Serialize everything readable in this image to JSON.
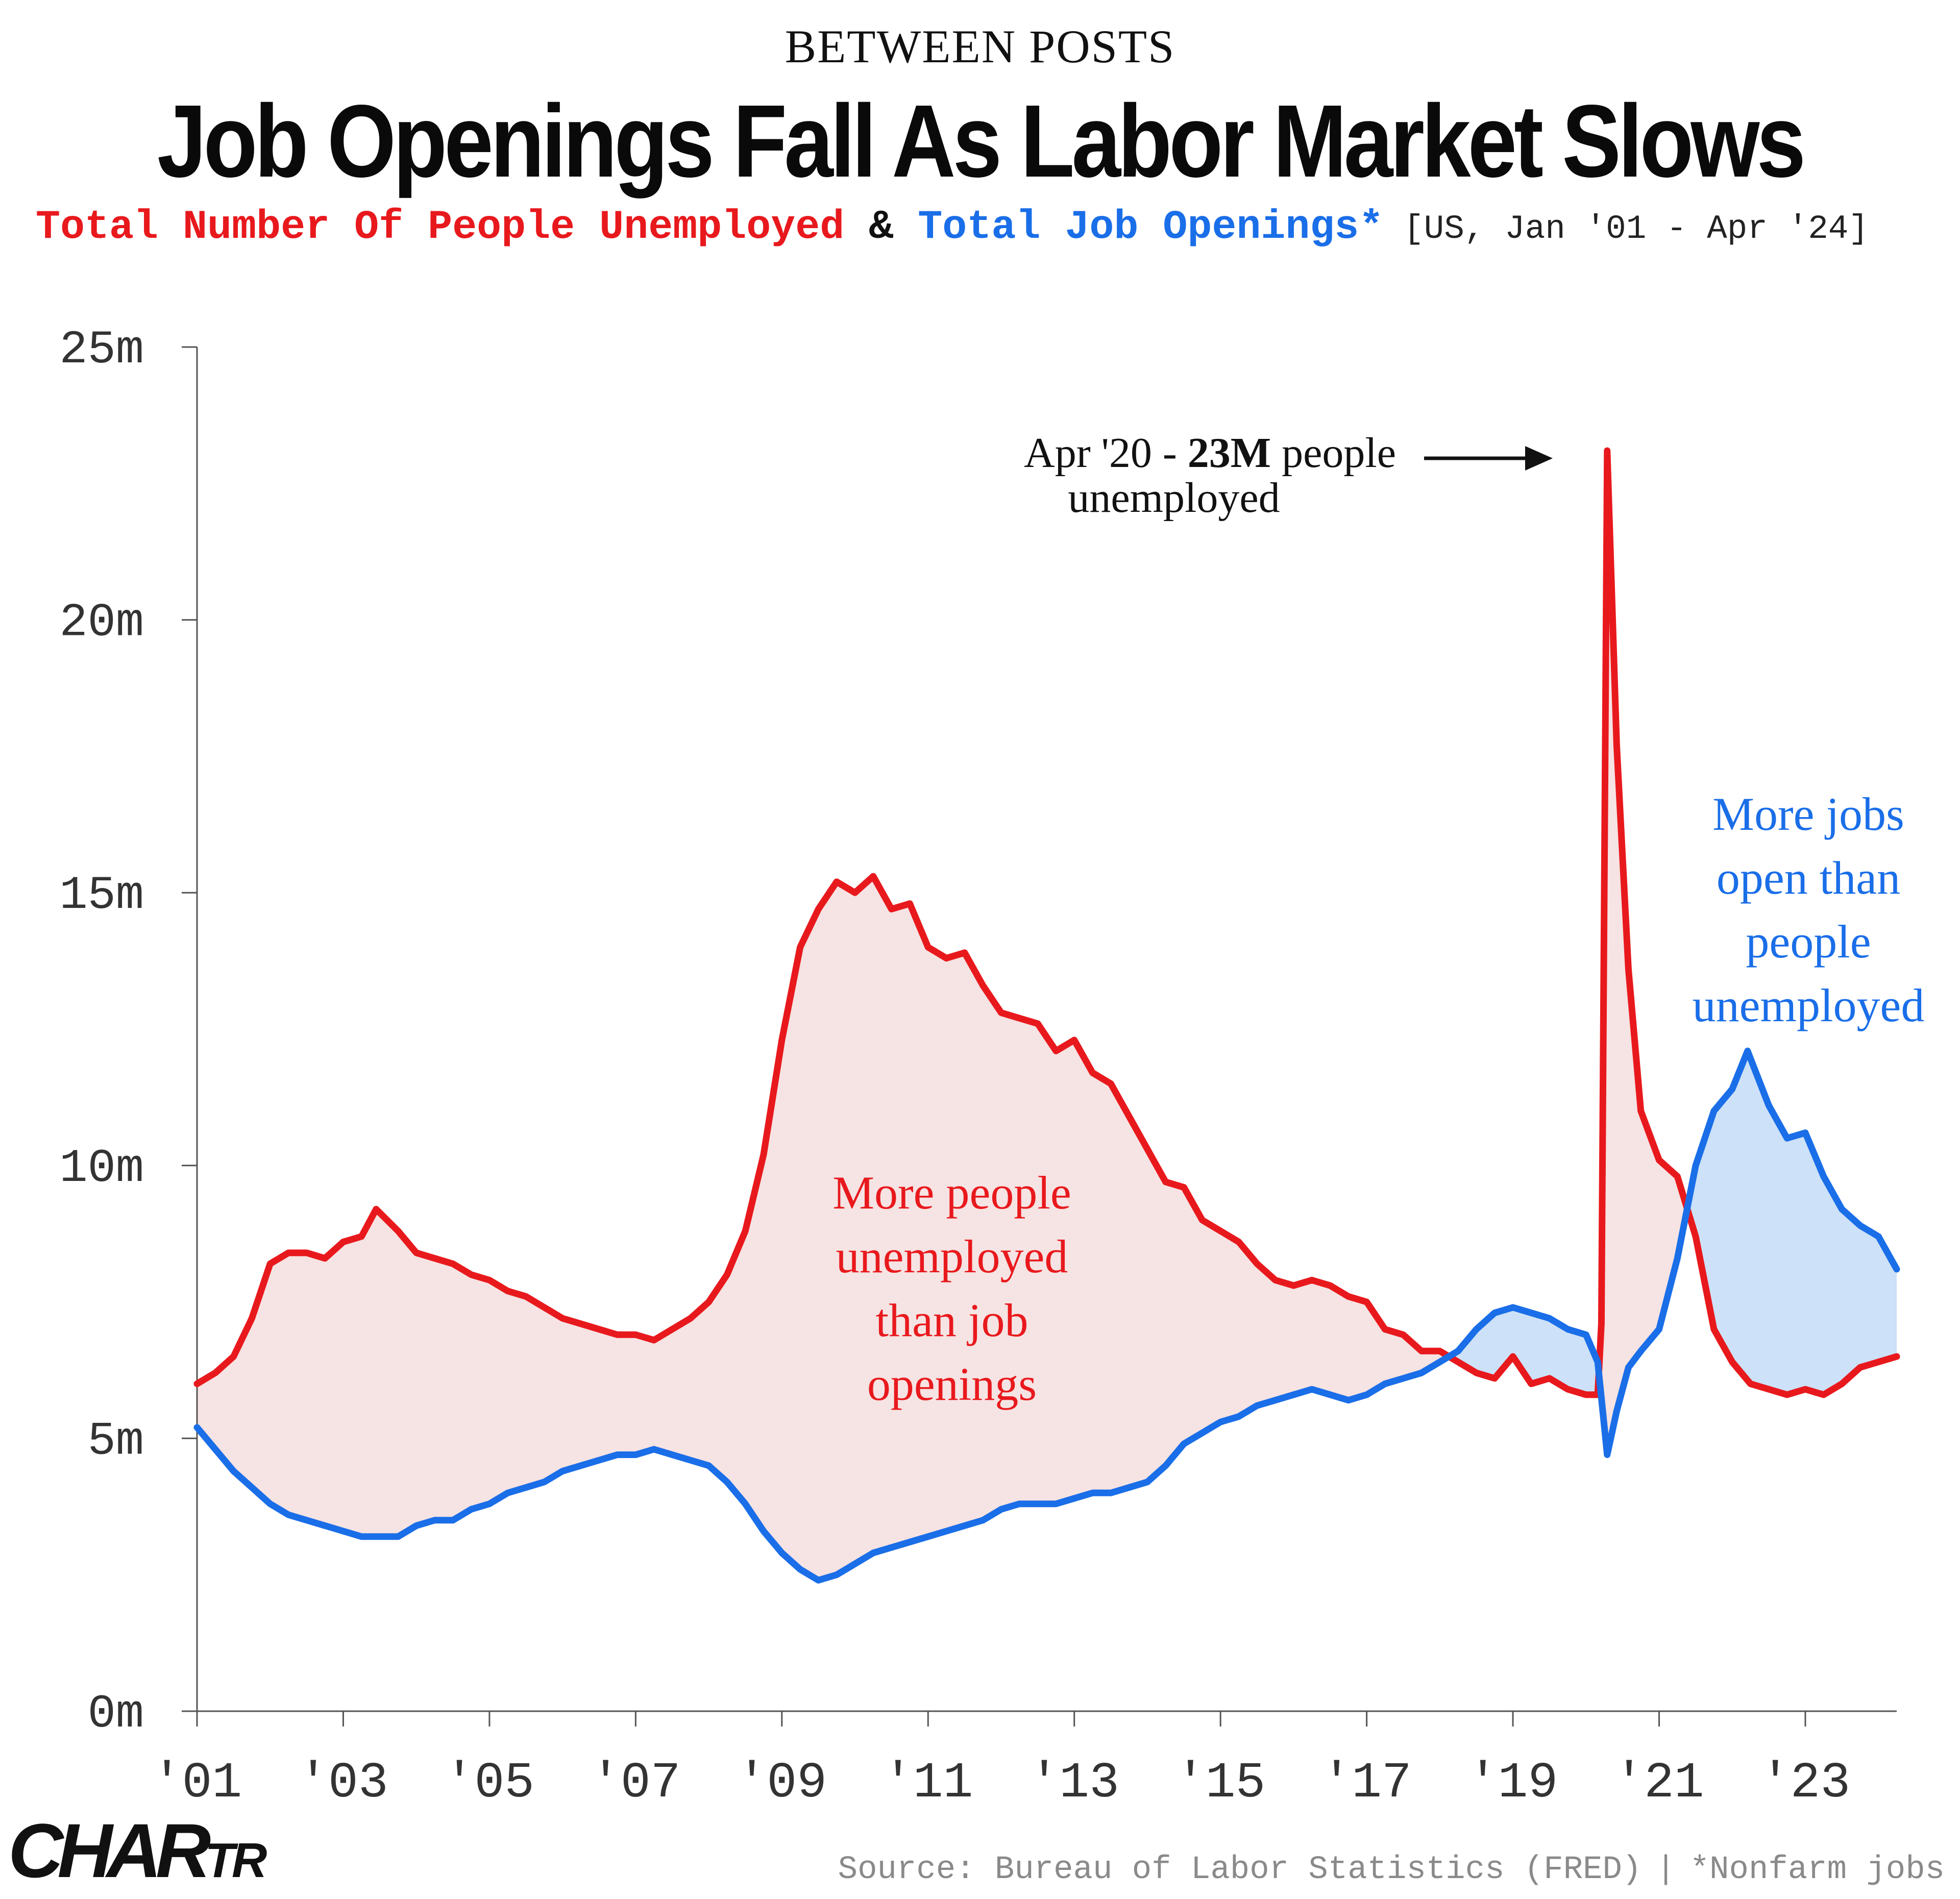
{
  "header": {
    "kicker": "BETWEEN POSTS",
    "title": "Job Openings Fall As Labor Market Slows",
    "subtitle_series1": "Total Number Of People Unemployed",
    "subtitle_and": " & ",
    "subtitle_series2": "Total Job Openings*",
    "subtitle_range": " [US, Jan '01 - Apr '24]"
  },
  "footer": {
    "logo_main": "CHAR",
    "logo_small": "TR",
    "source": "Source: Bureau of Labor Statistics (FRED)",
    "note": "*Nonfarm jobs"
  },
  "colors": {
    "unemployed": "#e8191d",
    "openings": "#1a6ee8",
    "fill_unemployed_higher": "#f6e3e3",
    "fill_openings_higher": "#cde1f8",
    "axis": "#555555",
    "tick_text": "#333333",
    "annotation": "#111111"
  },
  "chart_data": {
    "type": "line",
    "ylim": [
      0,
      25
    ],
    "xlim": [
      2001.0,
      2024.25
    ],
    "y_ticks": [
      {
        "value": 0,
        "label": "0m"
      },
      {
        "value": 5,
        "label": "5m"
      },
      {
        "value": 10,
        "label": "10m"
      },
      {
        "value": 15,
        "label": "15m"
      },
      {
        "value": 20,
        "label": "20m"
      },
      {
        "value": 25,
        "label": "25m"
      }
    ],
    "x_ticks": [
      {
        "value": 2001,
        "label": "'01"
      },
      {
        "value": 2003,
        "label": "'03"
      },
      {
        "value": 2005,
        "label": "'05"
      },
      {
        "value": 2007,
        "label": "'07"
      },
      {
        "value": 2009,
        "label": "'09"
      },
      {
        "value": 2011,
        "label": "'11"
      },
      {
        "value": 2013,
        "label": "'13"
      },
      {
        "value": 2015,
        "label": "'15"
      },
      {
        "value": 2017,
        "label": "'17"
      },
      {
        "value": 2019,
        "label": "'19"
      },
      {
        "value": 2021,
        "label": "'21"
      },
      {
        "value": 2023,
        "label": "'23"
      }
    ],
    "series": [
      {
        "key": "unemployed",
        "points": [
          [
            2001.0,
            6.0
          ],
          [
            2001.25,
            6.2
          ],
          [
            2001.5,
            6.5
          ],
          [
            2001.75,
            7.2
          ],
          [
            2002.0,
            8.2
          ],
          [
            2002.25,
            8.4
          ],
          [
            2002.5,
            8.4
          ],
          [
            2002.75,
            8.3
          ],
          [
            2003.0,
            8.6
          ],
          [
            2003.25,
            8.7
          ],
          [
            2003.45,
            9.2
          ],
          [
            2003.75,
            8.8
          ],
          [
            2004.0,
            8.4
          ],
          [
            2004.25,
            8.3
          ],
          [
            2004.5,
            8.2
          ],
          [
            2004.75,
            8.0
          ],
          [
            2005.0,
            7.9
          ],
          [
            2005.25,
            7.7
          ],
          [
            2005.5,
            7.6
          ],
          [
            2005.75,
            7.4
          ],
          [
            2006.0,
            7.2
          ],
          [
            2006.25,
            7.1
          ],
          [
            2006.5,
            7.0
          ],
          [
            2006.75,
            6.9
          ],
          [
            2007.0,
            6.9
          ],
          [
            2007.25,
            6.8
          ],
          [
            2007.5,
            7.0
          ],
          [
            2007.75,
            7.2
          ],
          [
            2008.0,
            7.5
          ],
          [
            2008.25,
            8.0
          ],
          [
            2008.5,
            8.8
          ],
          [
            2008.75,
            10.2
          ],
          [
            2009.0,
            12.3
          ],
          [
            2009.25,
            14.0
          ],
          [
            2009.5,
            14.7
          ],
          [
            2009.75,
            15.2
          ],
          [
            2010.0,
            15.0
          ],
          [
            2010.25,
            15.3
          ],
          [
            2010.5,
            14.7
          ],
          [
            2010.75,
            14.8
          ],
          [
            2011.0,
            14.0
          ],
          [
            2011.25,
            13.8
          ],
          [
            2011.5,
            13.9
          ],
          [
            2011.75,
            13.3
          ],
          [
            2012.0,
            12.8
          ],
          [
            2012.25,
            12.7
          ],
          [
            2012.5,
            12.6
          ],
          [
            2012.75,
            12.1
          ],
          [
            2013.0,
            12.3
          ],
          [
            2013.25,
            11.7
          ],
          [
            2013.5,
            11.5
          ],
          [
            2013.75,
            10.9
          ],
          [
            2014.0,
            10.3
          ],
          [
            2014.25,
            9.7
          ],
          [
            2014.5,
            9.6
          ],
          [
            2014.75,
            9.0
          ],
          [
            2015.0,
            8.8
          ],
          [
            2015.25,
            8.6
          ],
          [
            2015.5,
            8.2
          ],
          [
            2015.75,
            7.9
          ],
          [
            2016.0,
            7.8
          ],
          [
            2016.25,
            7.9
          ],
          [
            2016.5,
            7.8
          ],
          [
            2016.75,
            7.6
          ],
          [
            2017.0,
            7.5
          ],
          [
            2017.25,
            7.0
          ],
          [
            2017.5,
            6.9
          ],
          [
            2017.75,
            6.6
          ],
          [
            2018.0,
            6.6
          ],
          [
            2018.25,
            6.4
          ],
          [
            2018.5,
            6.2
          ],
          [
            2018.75,
            6.1
          ],
          [
            2019.0,
            6.5
          ],
          [
            2019.25,
            6.0
          ],
          [
            2019.5,
            6.1
          ],
          [
            2019.75,
            5.9
          ],
          [
            2020.0,
            5.8
          ],
          [
            2020.16,
            5.8
          ],
          [
            2020.21,
            7.1
          ],
          [
            2020.29,
            23.1
          ],
          [
            2020.42,
            17.7
          ],
          [
            2020.58,
            13.6
          ],
          [
            2020.75,
            11.0
          ],
          [
            2021.0,
            10.1
          ],
          [
            2021.25,
            9.8
          ],
          [
            2021.5,
            8.7
          ],
          [
            2021.75,
            7.0
          ],
          [
            2022.0,
            6.4
          ],
          [
            2022.25,
            6.0
          ],
          [
            2022.5,
            5.9
          ],
          [
            2022.75,
            5.8
          ],
          [
            2023.0,
            5.9
          ],
          [
            2023.25,
            5.8
          ],
          [
            2023.5,
            6.0
          ],
          [
            2023.75,
            6.3
          ],
          [
            2024.0,
            6.4
          ],
          [
            2024.25,
            6.5
          ]
        ]
      },
      {
        "key": "openings",
        "points": [
          [
            2001.0,
            5.2
          ],
          [
            2001.25,
            4.8
          ],
          [
            2001.5,
            4.4
          ],
          [
            2001.75,
            4.1
          ],
          [
            2002.0,
            3.8
          ],
          [
            2002.25,
            3.6
          ],
          [
            2002.5,
            3.5
          ],
          [
            2002.75,
            3.4
          ],
          [
            2003.0,
            3.3
          ],
          [
            2003.25,
            3.2
          ],
          [
            2003.5,
            3.2
          ],
          [
            2003.75,
            3.2
          ],
          [
            2004.0,
            3.4
          ],
          [
            2004.25,
            3.5
          ],
          [
            2004.5,
            3.5
          ],
          [
            2004.75,
            3.7
          ],
          [
            2005.0,
            3.8
          ],
          [
            2005.25,
            4.0
          ],
          [
            2005.5,
            4.1
          ],
          [
            2005.75,
            4.2
          ],
          [
            2006.0,
            4.4
          ],
          [
            2006.25,
            4.5
          ],
          [
            2006.5,
            4.6
          ],
          [
            2006.75,
            4.7
          ],
          [
            2007.0,
            4.7
          ],
          [
            2007.25,
            4.8
          ],
          [
            2007.5,
            4.7
          ],
          [
            2007.75,
            4.6
          ],
          [
            2008.0,
            4.5
          ],
          [
            2008.25,
            4.2
          ],
          [
            2008.5,
            3.8
          ],
          [
            2008.75,
            3.3
          ],
          [
            2009.0,
            2.9
          ],
          [
            2009.25,
            2.6
          ],
          [
            2009.5,
            2.4
          ],
          [
            2009.75,
            2.5
          ],
          [
            2010.0,
            2.7
          ],
          [
            2010.25,
            2.9
          ],
          [
            2010.5,
            3.0
          ],
          [
            2010.75,
            3.1
          ],
          [
            2011.0,
            3.2
          ],
          [
            2011.25,
            3.3
          ],
          [
            2011.5,
            3.4
          ],
          [
            2011.75,
            3.5
          ],
          [
            2012.0,
            3.7
          ],
          [
            2012.25,
            3.8
          ],
          [
            2012.5,
            3.8
          ],
          [
            2012.75,
            3.8
          ],
          [
            2013.0,
            3.9
          ],
          [
            2013.25,
            4.0
          ],
          [
            2013.5,
            4.0
          ],
          [
            2013.75,
            4.1
          ],
          [
            2014.0,
            4.2
          ],
          [
            2014.25,
            4.5
          ],
          [
            2014.5,
            4.9
          ],
          [
            2014.75,
            5.1
          ],
          [
            2015.0,
            5.3
          ],
          [
            2015.25,
            5.4
          ],
          [
            2015.5,
            5.6
          ],
          [
            2015.75,
            5.7
          ],
          [
            2016.0,
            5.8
          ],
          [
            2016.25,
            5.9
          ],
          [
            2016.5,
            5.8
          ],
          [
            2016.75,
            5.7
          ],
          [
            2017.0,
            5.8
          ],
          [
            2017.25,
            6.0
          ],
          [
            2017.5,
            6.1
          ],
          [
            2017.75,
            6.2
          ],
          [
            2018.0,
            6.4
          ],
          [
            2018.25,
            6.6
          ],
          [
            2018.5,
            7.0
          ],
          [
            2018.75,
            7.3
          ],
          [
            2019.0,
            7.4
          ],
          [
            2019.25,
            7.3
          ],
          [
            2019.5,
            7.2
          ],
          [
            2019.75,
            7.0
          ],
          [
            2020.0,
            6.9
          ],
          [
            2020.16,
            6.4
          ],
          [
            2020.29,
            4.7
          ],
          [
            2020.42,
            5.5
          ],
          [
            2020.58,
            6.3
          ],
          [
            2020.75,
            6.6
          ],
          [
            2021.0,
            7.0
          ],
          [
            2021.25,
            8.3
          ],
          [
            2021.5,
            10.0
          ],
          [
            2021.75,
            11.0
          ],
          [
            2022.0,
            11.4
          ],
          [
            2022.21,
            12.1
          ],
          [
            2022.5,
            11.1
          ],
          [
            2022.75,
            10.5
          ],
          [
            2023.0,
            10.6
          ],
          [
            2023.25,
            9.8
          ],
          [
            2023.5,
            9.2
          ],
          [
            2023.75,
            8.9
          ],
          [
            2024.0,
            8.7
          ],
          [
            2024.25,
            8.1
          ]
        ]
      }
    ],
    "annotations": [
      {
        "key": "peak_line1_a",
        "text": "Apr '20 - "
      },
      {
        "key": "peak_line1_b",
        "text": "23M"
      },
      {
        "key": "peak_line1_c",
        "text": " people"
      },
      {
        "key": "peak_line2",
        "text": "unemployed"
      },
      {
        "key": "region_red",
        "lines": [
          "More people",
          "unemployed",
          "than job",
          "openings"
        ]
      },
      {
        "key": "region_blue",
        "lines": [
          "More jobs",
          "open than",
          "people",
          "unemployed"
        ]
      }
    ]
  }
}
